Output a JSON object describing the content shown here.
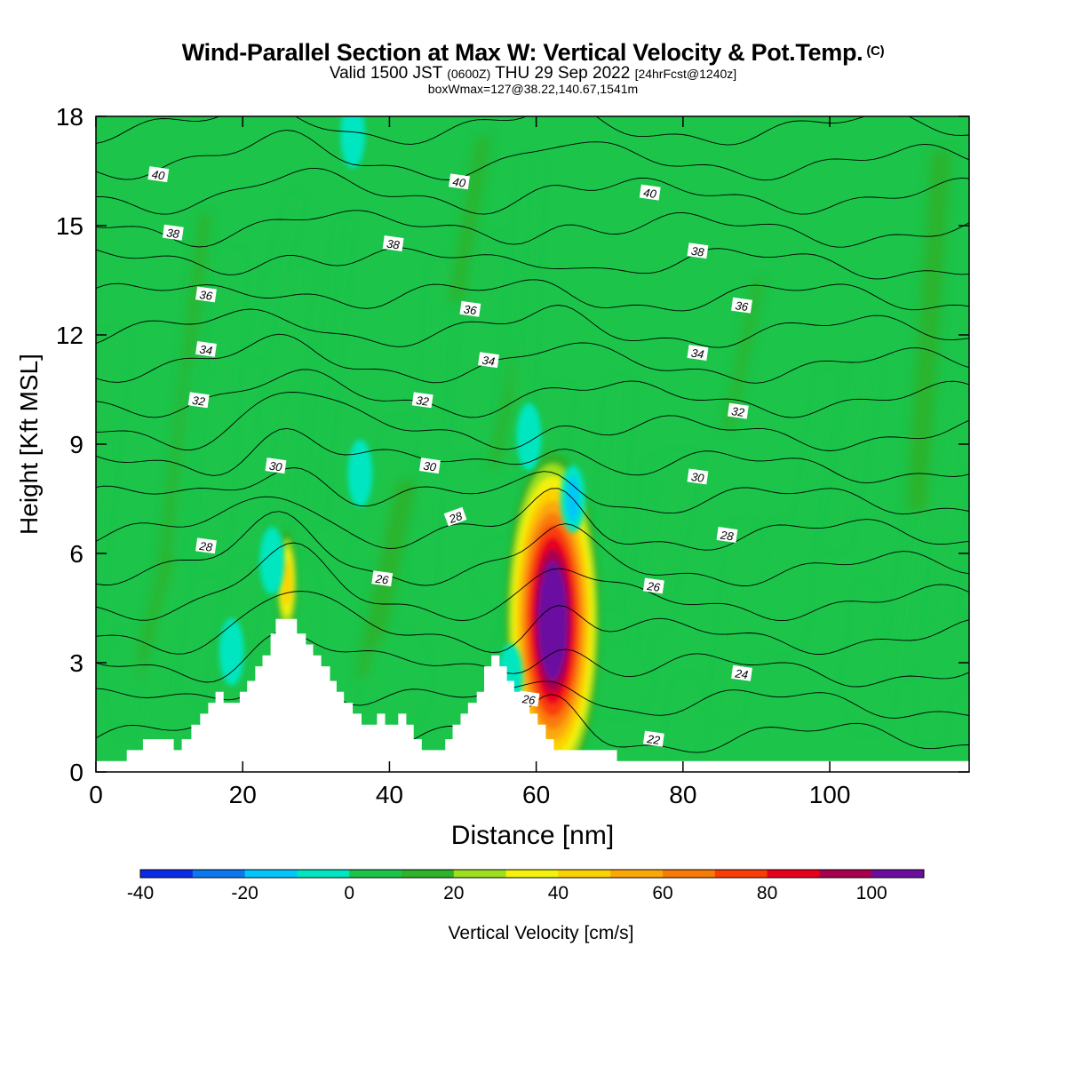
{
  "title": {
    "main": "Wind-Parallel Section at Max W: Vertical Velocity & Pot.Temp.",
    "copyright": "(C)",
    "line2_a": "Valid 1500 JST",
    "line2_b": "(0600Z)",
    "line2_c": "THU 29 Sep 2022",
    "line2_d": "[24hrFcst@1240z]",
    "line3": "boxWmax=127@38.22,140.67,1541m"
  },
  "chart_data": {
    "type": "heatmap",
    "title": "Wind-Parallel Section at Max W: Vertical Velocity & Pot.Temp.",
    "xlabel": "Distance [nm]",
    "ylabel": "Height [Kft MSL]",
    "xlim": [
      0,
      119
    ],
    "ylim": [
      0,
      18
    ],
    "x_ticks": [
      0,
      20,
      40,
      60,
      80,
      100
    ],
    "y_ticks": [
      0,
      3,
      6,
      9,
      12,
      15,
      18
    ],
    "colorbar": {
      "label": "Vertical Velocity [cm/s]",
      "bounds": [
        -40,
        110
      ],
      "step": 10,
      "tick_values": [
        -40,
        -20,
        0,
        20,
        40,
        60,
        80,
        100
      ],
      "colors": [
        "#0c2be6",
        "#0a78f0",
        "#02c6fa",
        "#00e6c0",
        "#1cc44a",
        "#2db22a",
        "#9ee01e",
        "#f2f20a",
        "#fdd204",
        "#fba807",
        "#fa7a08",
        "#fa3c07",
        "#e8001c",
        "#a8004e",
        "#6a0ea0"
      ]
    },
    "background_value": 5,
    "cells": [
      {
        "x": [
          62.5,
          4.2
        ],
        "v": 127,
        "note": "max updraft core"
      },
      {
        "x": [
          26,
          5.2
        ],
        "v": 45
      },
      {
        "x": [
          65,
          7.5
        ],
        "v": -20
      },
      {
        "x": [
          36,
          8.2
        ],
        "v": -10
      },
      {
        "x": [
          59,
          9.2
        ],
        "v": -10
      },
      {
        "x": [
          56.5,
          2.6
        ],
        "v": -15
      },
      {
        "x": [
          18.5,
          3.3
        ],
        "v": -10
      },
      {
        "x": [
          24,
          5.8
        ],
        "v": -10
      },
      {
        "x": [
          35,
          17.5
        ],
        "v": -10
      }
    ],
    "contours": {
      "name": "Potential Temperature",
      "labels": [
        {
          "value": 40,
          "x": 8.5,
          "y": 16.4
        },
        {
          "value": 40,
          "x": 49.5,
          "y": 16.2
        },
        {
          "value": 40,
          "x": 75.5,
          "y": 15.9
        },
        {
          "value": 38,
          "x": 10.5,
          "y": 14.8
        },
        {
          "value": 38,
          "x": 40.5,
          "y": 14.5
        },
        {
          "value": 38,
          "x": 82,
          "y": 14.3
        },
        {
          "value": 36,
          "x": 15,
          "y": 13.1
        },
        {
          "value": 36,
          "x": 51,
          "y": 12.7
        },
        {
          "value": 36,
          "x": 88,
          "y": 12.8
        },
        {
          "value": 34,
          "x": 15,
          "y": 11.6
        },
        {
          "value": 34,
          "x": 53.5,
          "y": 11.3
        },
        {
          "value": 34,
          "x": 82,
          "y": 11.5
        },
        {
          "value": 32,
          "x": 14,
          "y": 10.2
        },
        {
          "value": 32,
          "x": 44.5,
          "y": 10.2
        },
        {
          "value": 32,
          "x": 87.5,
          "y": 9.9
        },
        {
          "value": 30,
          "x": 24.5,
          "y": 8.4
        },
        {
          "value": 30,
          "x": 45.5,
          "y": 8.4
        },
        {
          "value": 30,
          "x": 82,
          "y": 8.1
        },
        {
          "value": 28,
          "x": 15,
          "y": 6.2
        },
        {
          "value": 28,
          "x": 49,
          "y": 7.0
        },
        {
          "value": 28,
          "x": 86,
          "y": 6.5
        },
        {
          "value": 26,
          "x": 39,
          "y": 5.3
        },
        {
          "value": 26,
          "x": 76,
          "y": 5.1
        },
        {
          "value": 26,
          "x": 59,
          "y": 2.0
        },
        {
          "value": 24,
          "x": 88,
          "y": 2.7
        },
        {
          "value": 22,
          "x": 76,
          "y": 0.9
        }
      ]
    },
    "terrain": [
      [
        0,
        0.3
      ],
      [
        4.2,
        0.3
      ],
      [
        4.2,
        0.6
      ],
      [
        6.4,
        0.6
      ],
      [
        6.4,
        0.9
      ],
      [
        10.6,
        0.9
      ],
      [
        10.6,
        0.6
      ],
      [
        11.7,
        0.6
      ],
      [
        11.7,
        0.9
      ],
      [
        13,
        0.9
      ],
      [
        13,
        1.3
      ],
      [
        14.2,
        1.3
      ],
      [
        14.2,
        1.6
      ],
      [
        15.3,
        1.6
      ],
      [
        15.3,
        1.9
      ],
      [
        16.3,
        1.9
      ],
      [
        16.3,
        2.2
      ],
      [
        17.4,
        2.2
      ],
      [
        17.4,
        1.9
      ],
      [
        19.6,
        1.9
      ],
      [
        19.6,
        2.2
      ],
      [
        20.6,
        2.2
      ],
      [
        20.6,
        2.5
      ],
      [
        21.7,
        2.5
      ],
      [
        21.7,
        2.9
      ],
      [
        22.7,
        2.9
      ],
      [
        22.7,
        3.2
      ],
      [
        23.8,
        3.2
      ],
      [
        23.8,
        3.8
      ],
      [
        24.5,
        3.8
      ],
      [
        24.5,
        4.2
      ],
      [
        27.4,
        4.2
      ],
      [
        27.4,
        3.8
      ],
      [
        28.6,
        3.8
      ],
      [
        28.6,
        3.5
      ],
      [
        29.6,
        3.5
      ],
      [
        29.6,
        3.2
      ],
      [
        30.7,
        3.2
      ],
      [
        30.7,
        2.9
      ],
      [
        31.9,
        2.9
      ],
      [
        31.9,
        2.5
      ],
      [
        32.8,
        2.5
      ],
      [
        32.8,
        2.2
      ],
      [
        33.8,
        2.2
      ],
      [
        33.8,
        1.9
      ],
      [
        35.0,
        1.9
      ],
      [
        35.0,
        1.6
      ],
      [
        36.2,
        1.6
      ],
      [
        36.2,
        1.3
      ],
      [
        38.3,
        1.3
      ],
      [
        38.3,
        1.6
      ],
      [
        39.4,
        1.6
      ],
      [
        39.4,
        1.3
      ],
      [
        41.2,
        1.3
      ],
      [
        41.2,
        1.6
      ],
      [
        42.3,
        1.6
      ],
      [
        42.3,
        1.3
      ],
      [
        43.3,
        1.3
      ],
      [
        43.3,
        0.9
      ],
      [
        44.4,
        0.9
      ],
      [
        44.4,
        0.6
      ],
      [
        47.6,
        0.6
      ],
      [
        47.6,
        0.9
      ],
      [
        48.6,
        0.9
      ],
      [
        48.6,
        1.3
      ],
      [
        49.7,
        1.3
      ],
      [
        49.7,
        1.6
      ],
      [
        50.7,
        1.6
      ],
      [
        50.7,
        1.9
      ],
      [
        51.9,
        1.9
      ],
      [
        51.9,
        2.2
      ],
      [
        52.9,
        2.2
      ],
      [
        52.9,
        2.9
      ],
      [
        53.9,
        2.9
      ],
      [
        53.9,
        3.2
      ],
      [
        55.0,
        3.2
      ],
      [
        55.0,
        2.9
      ],
      [
        56.0,
        2.9
      ],
      [
        56.0,
        2.5
      ],
      [
        57.0,
        2.5
      ],
      [
        57.0,
        2.2
      ],
      [
        58.1,
        2.2
      ],
      [
        58.1,
        1.9
      ],
      [
        59.1,
        1.9
      ],
      [
        59.1,
        1.6
      ],
      [
        60.2,
        1.6
      ],
      [
        60.2,
        1.3
      ],
      [
        61.3,
        1.3
      ],
      [
        61.3,
        0.9
      ],
      [
        62.4,
        0.9
      ],
      [
        62.4,
        0.6
      ],
      [
        71.0,
        0.6
      ],
      [
        71.0,
        0.3
      ],
      [
        119,
        0.3
      ]
    ]
  }
}
